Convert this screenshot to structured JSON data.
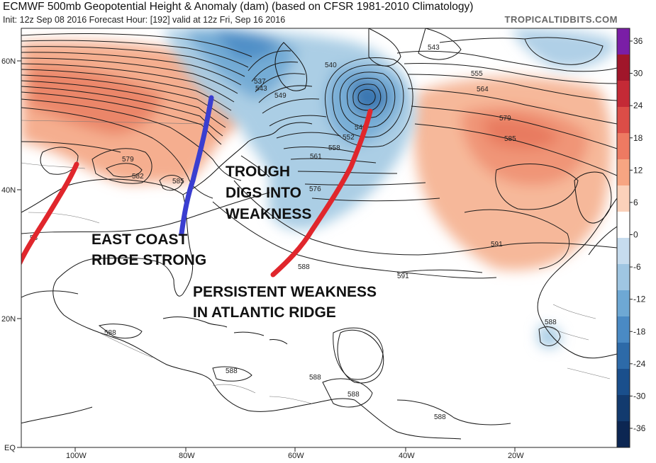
{
  "header": {
    "title": "ECMWF 500mb Geopotential Height & Anomaly (dam) (based on CFSR 1981-2010 Climatology)",
    "subtitle": "Init: 12z Sep 08 2016   Forecast Hour: [192]   valid at 12z Fri, Sep 16 2016",
    "brand": "TROPICALTIDBITS.COM"
  },
  "axes": {
    "lat_labels": [
      "60N",
      "40N",
      "20N",
      "EQ"
    ],
    "lon_labels": [
      "100W",
      "80W",
      "60W",
      "40W",
      "20W"
    ]
  },
  "colorbar": {
    "ticks": [
      "36",
      "30",
      "24",
      "18",
      "12",
      "6",
      "0",
      "-6",
      "-12",
      "-18",
      "-24",
      "-30",
      "-36"
    ],
    "colors": [
      "#7a1ea6",
      "#a0162a",
      "#c42a36",
      "#dc4d47",
      "#ee7a62",
      "#f7a582",
      "#fbd1ba",
      "#ffffff",
      "#c6dcee",
      "#9fc6e2",
      "#6ea8d4",
      "#4a8ac4",
      "#2d6aa8",
      "#1a4f8c",
      "#123a6e",
      "#0c2652"
    ]
  },
  "contour_labels": [
    "543",
    "540",
    "537",
    "549",
    "546",
    "552",
    "558",
    "561",
    "555",
    "564",
    "579",
    "585",
    "579",
    "582",
    "585",
    "576",
    "58",
    "588",
    "591",
    "591",
    "588",
    "588",
    "588",
    "588",
    "588",
    "588",
    "543"
  ],
  "annotations": {
    "trough": [
      "TROUGH",
      "DIGS INTO",
      "WEAKNESS"
    ],
    "ridge": [
      "EAST COAST",
      "RIDGE STRONG"
    ],
    "weakness": [
      "PERSISTENT WEAKNESS",
      "IN ATLANTIC RIDGE"
    ]
  },
  "annotation_colors": {
    "red": "#e0262c",
    "blue": "#3a3ed0"
  }
}
